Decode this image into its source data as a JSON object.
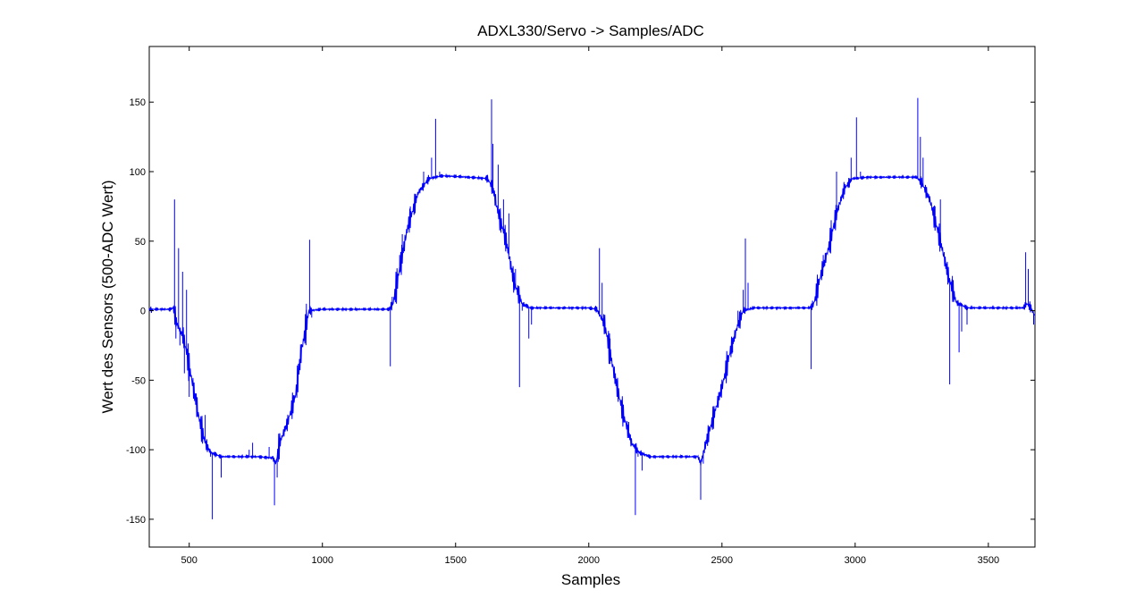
{
  "chart_data": {
    "type": "line",
    "title": "ADXL330/Servo -> Samples/ADC",
    "xlabel": "Samples",
    "ylabel": "Wert des Sensors (500-ADC Wert)",
    "xlim": [
      350,
      3675
    ],
    "ylim": [
      -170,
      190
    ],
    "xticks": [
      500,
      1000,
      1500,
      2000,
      2500,
      3000,
      3500
    ],
    "yticks": [
      150,
      100,
      50,
      0,
      -50,
      -100,
      -150
    ],
    "grid": false,
    "legend": "none",
    "series": [
      {
        "color": "#0000ff",
        "baseline": [
          [
            350,
            1
          ],
          [
            430,
            1
          ],
          [
            440,
            2
          ],
          [
            455,
            -10
          ],
          [
            480,
            -20
          ],
          [
            500,
            -40
          ],
          [
            520,
            -60
          ],
          [
            540,
            -80
          ],
          [
            560,
            -95
          ],
          [
            580,
            -102
          ],
          [
            620,
            -105
          ],
          [
            680,
            -105
          ],
          [
            760,
            -105
          ],
          [
            815,
            -106
          ],
          [
            825,
            -110
          ],
          [
            840,
            -95
          ],
          [
            870,
            -80
          ],
          [
            900,
            -60
          ],
          [
            920,
            -30
          ],
          [
            940,
            -10
          ],
          [
            950,
            0
          ],
          [
            1000,
            1
          ],
          [
            1200,
            1
          ],
          [
            1250,
            1
          ],
          [
            1265,
            5
          ],
          [
            1290,
            30
          ],
          [
            1320,
            60
          ],
          [
            1360,
            85
          ],
          [
            1400,
            95
          ],
          [
            1450,
            97
          ],
          [
            1550,
            96
          ],
          [
            1620,
            95
          ],
          [
            1640,
            88
          ],
          [
            1660,
            70
          ],
          [
            1690,
            50
          ],
          [
            1720,
            20
          ],
          [
            1750,
            5
          ],
          [
            1780,
            2
          ],
          [
            2000,
            2
          ],
          [
            2030,
            1
          ],
          [
            2060,
            -10
          ],
          [
            2080,
            -30
          ],
          [
            2100,
            -50
          ],
          [
            2130,
            -75
          ],
          [
            2160,
            -95
          ],
          [
            2190,
            -102
          ],
          [
            2230,
            -105
          ],
          [
            2300,
            -105
          ],
          [
            2410,
            -105
          ],
          [
            2420,
            -110
          ],
          [
            2440,
            -95
          ],
          [
            2470,
            -75
          ],
          [
            2500,
            -55
          ],
          [
            2530,
            -30
          ],
          [
            2560,
            -10
          ],
          [
            2580,
            0
          ],
          [
            2620,
            2
          ],
          [
            2830,
            2
          ],
          [
            2845,
            5
          ],
          [
            2870,
            25
          ],
          [
            2900,
            45
          ],
          [
            2930,
            70
          ],
          [
            2960,
            88
          ],
          [
            2990,
            95
          ],
          [
            3050,
            96
          ],
          [
            3230,
            96
          ],
          [
            3250,
            92
          ],
          [
            3280,
            80
          ],
          [
            3320,
            50
          ],
          [
            3350,
            25
          ],
          [
            3380,
            6
          ],
          [
            3420,
            2
          ],
          [
            3630,
            2
          ],
          [
            3645,
            5
          ],
          [
            3660,
            2
          ],
          [
            3675,
            -4
          ]
        ],
        "spikes": [
          [
            445,
            80
          ],
          [
            450,
            -20
          ],
          [
            460,
            45
          ],
          [
            465,
            -25
          ],
          [
            475,
            28
          ],
          [
            482,
            -45
          ],
          [
            490,
            15
          ],
          [
            500,
            -62
          ],
          [
            520,
            -65
          ],
          [
            560,
            -75
          ],
          [
            580,
            -105
          ],
          [
            587,
            -150
          ],
          [
            620,
            -120
          ],
          [
            725,
            -100
          ],
          [
            738,
            -95
          ],
          [
            800,
            -98
          ],
          [
            820,
            -140
          ],
          [
            830,
            -120
          ],
          [
            940,
            5
          ],
          [
            952,
            51
          ],
          [
            960,
            -5
          ],
          [
            1255,
            -40
          ],
          [
            1262,
            10
          ],
          [
            1290,
            40
          ],
          [
            1300,
            55
          ],
          [
            1330,
            75
          ],
          [
            1380,
            100
          ],
          [
            1410,
            110
          ],
          [
            1425,
            138
          ],
          [
            1440,
            100
          ],
          [
            1635,
            152
          ],
          [
            1640,
            120
          ],
          [
            1660,
            105
          ],
          [
            1680,
            80
          ],
          [
            1700,
            70
          ],
          [
            1725,
            30
          ],
          [
            1740,
            -55
          ],
          [
            1750,
            0
          ],
          [
            1775,
            -20
          ],
          [
            1785,
            -10
          ],
          [
            2040,
            45
          ],
          [
            2050,
            20
          ],
          [
            2080,
            -20
          ],
          [
            2100,
            -45
          ],
          [
            2150,
            -80
          ],
          [
            2175,
            -147
          ],
          [
            2185,
            -105
          ],
          [
            2200,
            -115
          ],
          [
            2420,
            -136
          ],
          [
            2430,
            -110
          ],
          [
            2540,
            -30
          ],
          [
            2560,
            0
          ],
          [
            2580,
            15
          ],
          [
            2588,
            52
          ],
          [
            2598,
            20
          ],
          [
            2835,
            -42
          ],
          [
            2842,
            5
          ],
          [
            2880,
            40
          ],
          [
            2910,
            65
          ],
          [
            2930,
            100
          ],
          [
            2985,
            110
          ],
          [
            3005,
            139
          ],
          [
            3020,
            100
          ],
          [
            3235,
            153
          ],
          [
            3245,
            125
          ],
          [
            3255,
            110
          ],
          [
            3300,
            75
          ],
          [
            3320,
            80
          ],
          [
            3340,
            30
          ],
          [
            3355,
            -53
          ],
          [
            3365,
            25
          ],
          [
            3390,
            -30
          ],
          [
            3400,
            -15
          ],
          [
            3420,
            -10
          ],
          [
            3640,
            42
          ],
          [
            3650,
            30
          ],
          [
            3670,
            -10
          ]
        ]
      }
    ]
  }
}
